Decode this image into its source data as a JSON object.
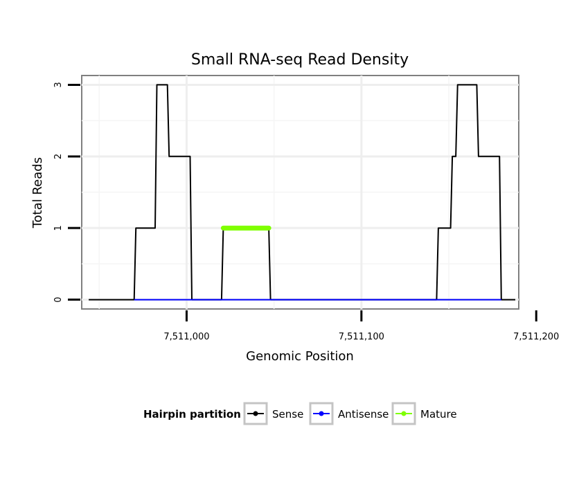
{
  "chart_data": {
    "type": "line",
    "title": "Small RNA-seq Read Density",
    "xlabel": "Genomic Position",
    "ylabel": "Total Reads",
    "xlim": [
      7510940,
      7511190
    ],
    "ylim": [
      -0.13,
      3.13
    ],
    "x_ticks": [
      7511000,
      7511100,
      7511200
    ],
    "x_tick_labels": [
      "7,511,000",
      "7,511,100",
      "7,511,200"
    ],
    "y_ticks": [
      0,
      1,
      2,
      3
    ],
    "y_tick_labels": [
      "0",
      "1",
      "2",
      "3"
    ],
    "grid": true,
    "legend": {
      "title": "Hairpin partition",
      "placement": "bottom",
      "entries": [
        "Sense",
        "Antisense",
        "Mature"
      ]
    },
    "series": [
      {
        "name": "Sense",
        "color": "#000000",
        "x": [
          7510944,
          7510970,
          7510971,
          7510982,
          7510983,
          7510989,
          7510990,
          7511002,
          7511003,
          7511020,
          7511021,
          7511047,
          7511048,
          7511143,
          7511144,
          7511151,
          7511152,
          7511154,
          7511155,
          7511166,
          7511167,
          7511179,
          7511180,
          7511188
        ],
        "y": [
          0,
          0,
          1,
          1,
          3,
          3,
          2,
          2,
          0,
          0,
          1,
          1,
          0,
          0,
          1,
          1,
          2,
          2,
          3,
          3,
          2,
          2,
          0,
          0
        ]
      },
      {
        "name": "Antisense",
        "color": "#0000ff",
        "x": [
          7510970,
          7511003,
          7511021,
          7511048,
          7511144,
          7511180
        ],
        "y": [
          0,
          0,
          0,
          0,
          0,
          0
        ]
      },
      {
        "name": "Mature",
        "color": "#7fff00",
        "x": [
          7511021,
          7511047
        ],
        "y": [
          1,
          1
        ]
      }
    ]
  }
}
